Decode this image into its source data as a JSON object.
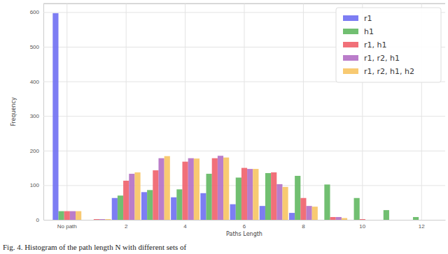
{
  "chart_data": {
    "type": "bar",
    "x_label": "Paths Length",
    "y_label": "Frequency",
    "annotations": [
      "Fig. 4.   Histogram of the path length N with different sets of"
    ],
    "categories": [
      "No path",
      null,
      "2",
      null,
      "4",
      null,
      "6",
      null,
      "8",
      null,
      "10",
      null,
      "12"
    ],
    "series": [
      {
        "name": "r1",
        "color": "#6f6ff2",
        "values": [
          597,
          0,
          63,
          80,
          65,
          77,
          45,
          40,
          20,
          0,
          0,
          0,
          0
        ]
      },
      {
        "name": "h1",
        "color": "#62b862",
        "values": [
          25,
          0,
          70,
          86,
          88,
          133,
          122,
          135,
          127,
          102,
          63,
          28,
          8
        ]
      },
      {
        "name": "r1, h1",
        "color": "#f0606a",
        "values": [
          25,
          2,
          113,
          143,
          168,
          178,
          150,
          137,
          63,
          8,
          2,
          0,
          0
        ]
      },
      {
        "name": "r1, r2, h1",
        "color": "#b36fc4",
        "values": [
          25,
          2,
          133,
          178,
          178,
          185,
          147,
          103,
          40,
          8,
          0,
          0,
          0
        ]
      },
      {
        "name": "r1, r2, h1, h2",
        "color": "#f7c463",
        "values": [
          25,
          2,
          137,
          184,
          177,
          180,
          147,
          95,
          38,
          5,
          0,
          0,
          0
        ]
      }
    ],
    "ylim": [
      0,
      625
    ],
    "yticks": [
      0,
      100,
      200,
      300,
      400,
      500,
      600
    ],
    "grid": true,
    "legend": "top-right"
  }
}
